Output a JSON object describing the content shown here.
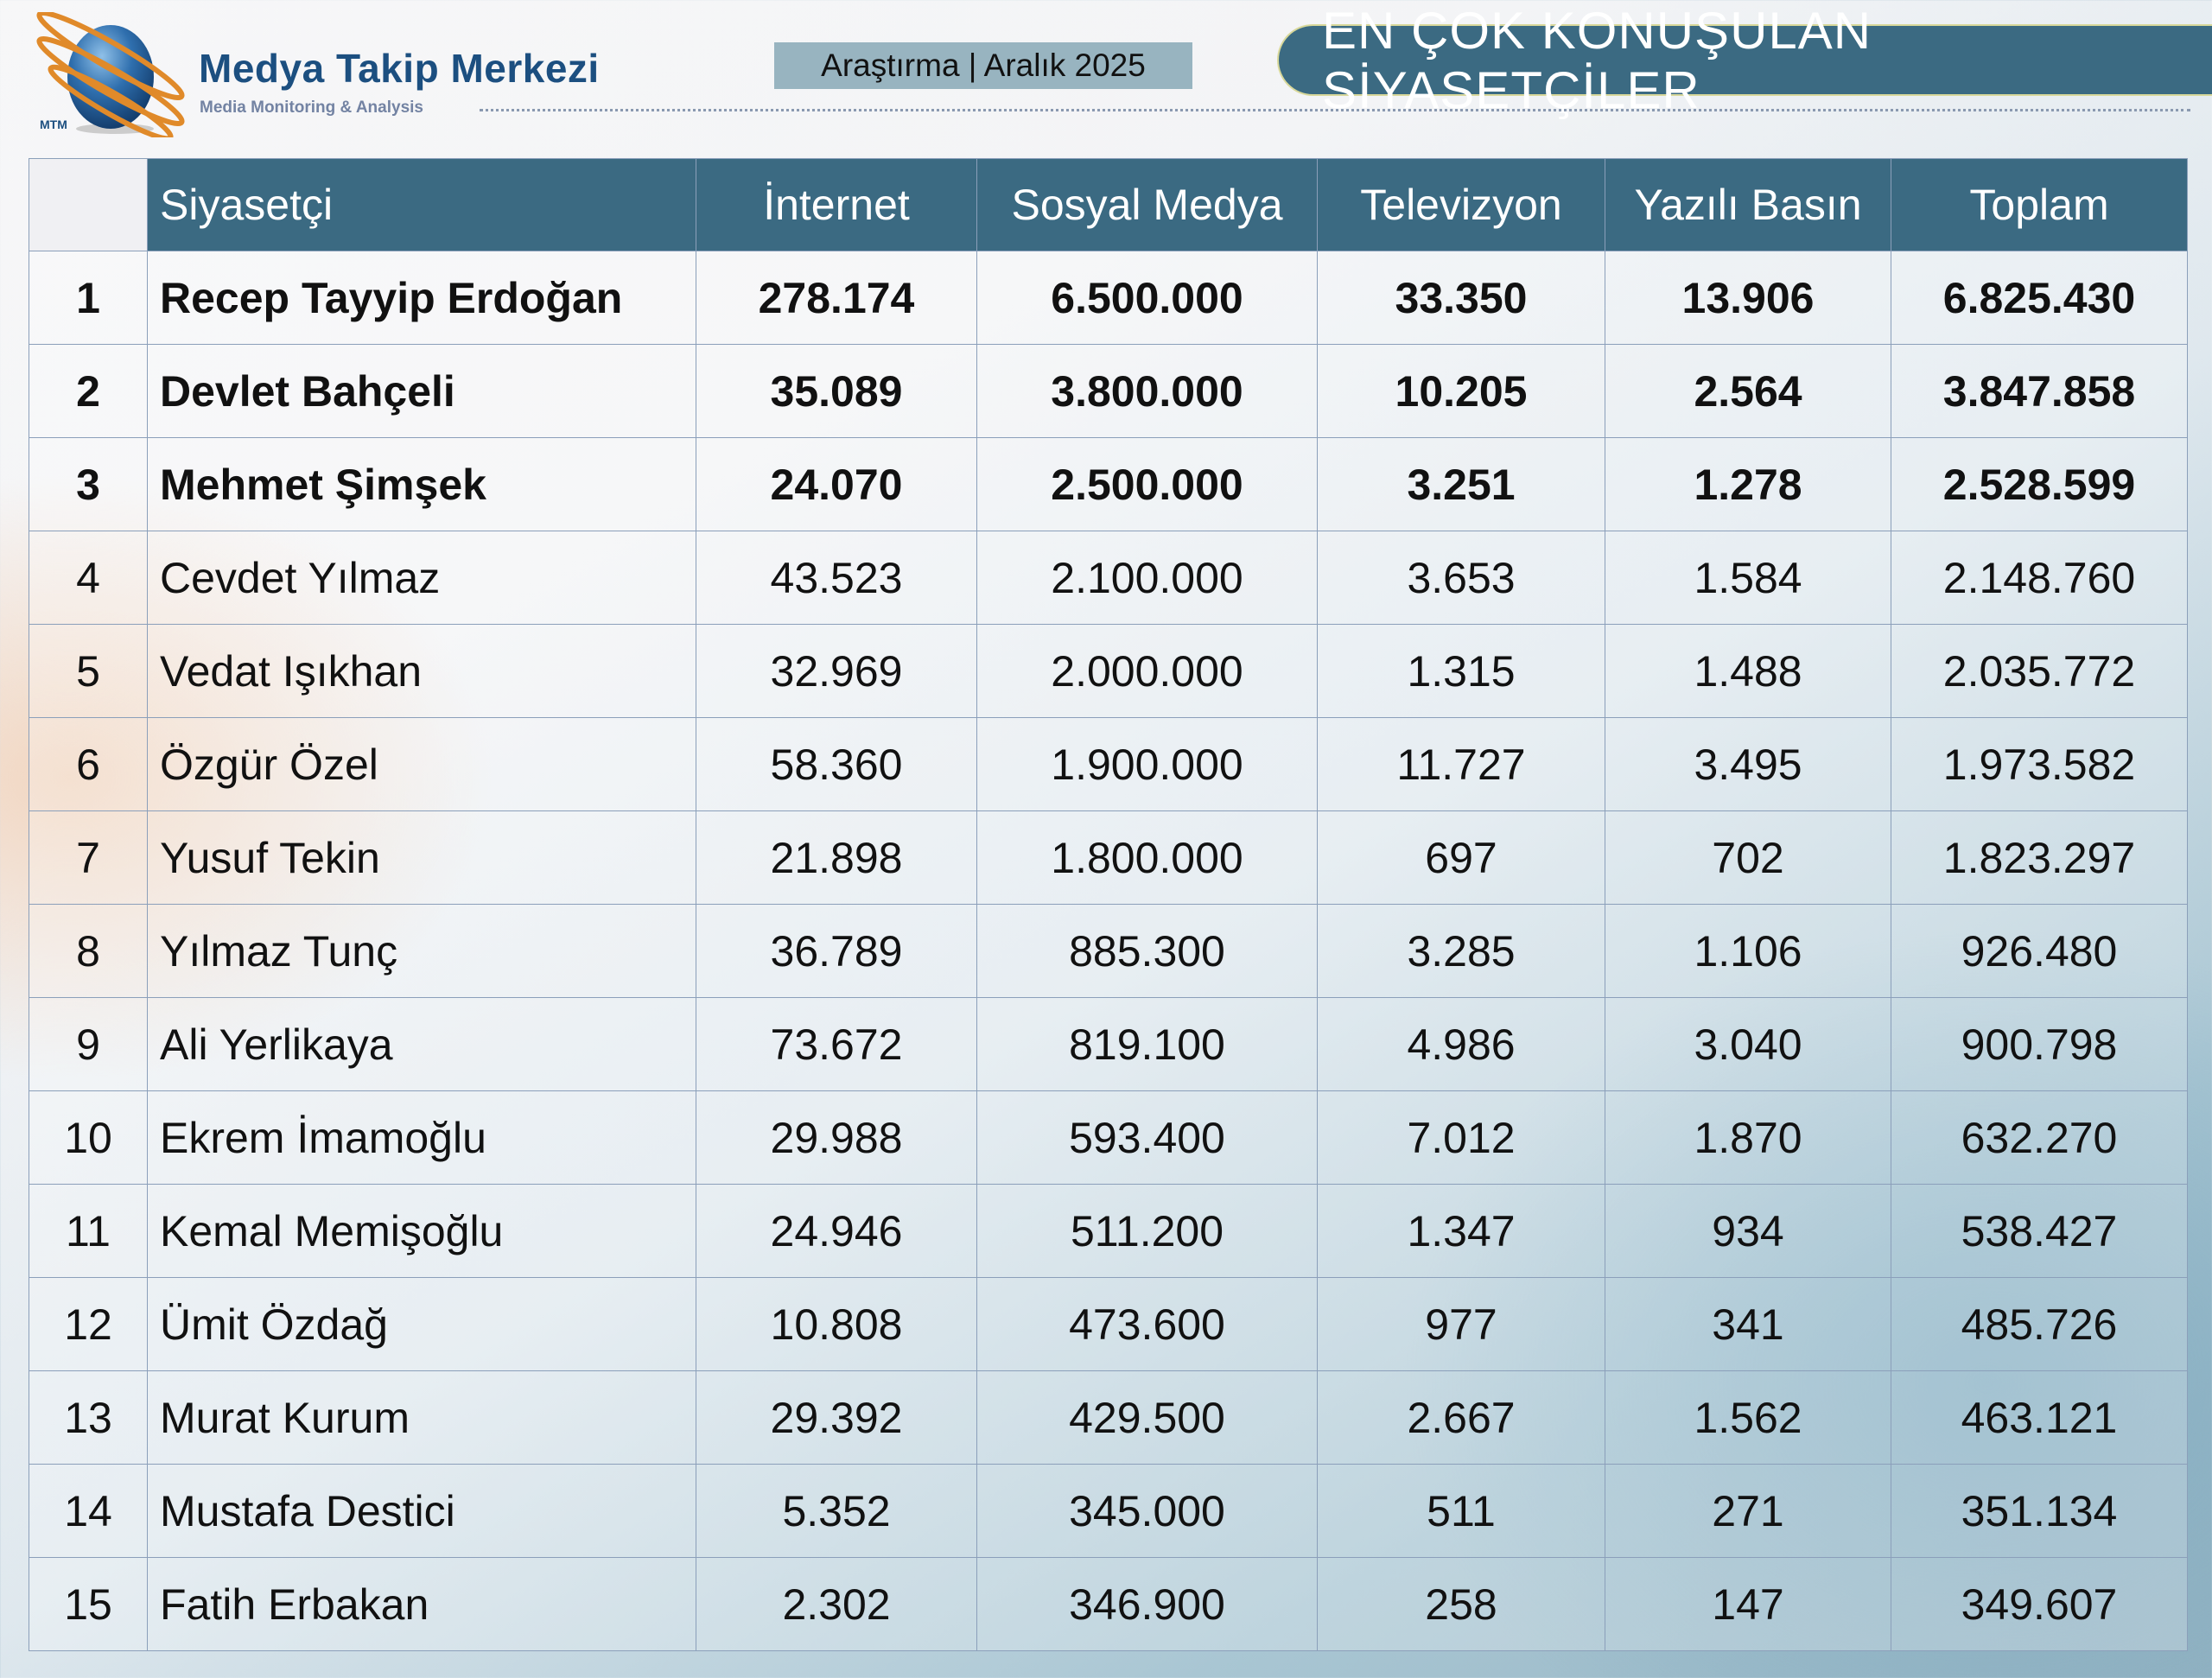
{
  "header": {
    "brand_name": "Medya Takip Merkezi",
    "brand_subtitle": "Media Monitoring & Analysis",
    "logo_text": "MTM",
    "badge": "Araştırma | Aralık 2025",
    "title": "EN ÇOK KONUŞULAN SİYASETÇİLER"
  },
  "colors": {
    "header_bg": "#3b6a82",
    "brand": "#1c4f80",
    "badge_bg": "#98b4c0",
    "logo_ring": "#e08a2a"
  },
  "table": {
    "columns": [
      "",
      "Siyasetçi",
      "İnternet",
      "Sosyal Medya",
      "Televizyon",
      "Yazılı Basın",
      "Toplam"
    ],
    "rows": [
      {
        "rank": "1",
        "name": "Recep Tayyip Erdoğan",
        "internet": "278.174",
        "social": "6.500.000",
        "tv": "33.350",
        "print": "13.906",
        "total": "6.825.430"
      },
      {
        "rank": "2",
        "name": "Devlet Bahçeli",
        "internet": "35.089",
        "social": "3.800.000",
        "tv": "10.205",
        "print": "2.564",
        "total": "3.847.858"
      },
      {
        "rank": "3",
        "name": "Mehmet Şimşek",
        "internet": "24.070",
        "social": "2.500.000",
        "tv": "3.251",
        "print": "1.278",
        "total": "2.528.599"
      },
      {
        "rank": "4",
        "name": "Cevdet Yılmaz",
        "internet": "43.523",
        "social": "2.100.000",
        "tv": "3.653",
        "print": "1.584",
        "total": "2.148.760"
      },
      {
        "rank": "5",
        "name": "Vedat Işıkhan",
        "internet": "32.969",
        "social": "2.000.000",
        "tv": "1.315",
        "print": "1.488",
        "total": "2.035.772"
      },
      {
        "rank": "6",
        "name": "Özgür Özel",
        "internet": "58.360",
        "social": "1.900.000",
        "tv": "11.727",
        "print": "3.495",
        "total": "1.973.582"
      },
      {
        "rank": "7",
        "name": "Yusuf Tekin",
        "internet": "21.898",
        "social": "1.800.000",
        "tv": "697",
        "print": "702",
        "total": "1.823.297"
      },
      {
        "rank": "8",
        "name": "Yılmaz Tunç",
        "internet": "36.789",
        "social": "885.300",
        "tv": "3.285",
        "print": "1.106",
        "total": "926.480"
      },
      {
        "rank": "9",
        "name": "Ali Yerlikaya",
        "internet": "73.672",
        "social": "819.100",
        "tv": "4.986",
        "print": "3.040",
        "total": "900.798"
      },
      {
        "rank": "10",
        "name": "Ekrem İmamoğlu",
        "internet": "29.988",
        "social": "593.400",
        "tv": "7.012",
        "print": "1.870",
        "total": "632.270"
      },
      {
        "rank": "11",
        "name": "Kemal Memişoğlu",
        "internet": "24.946",
        "social": "511.200",
        "tv": "1.347",
        "print": "934",
        "total": "538.427"
      },
      {
        "rank": "12",
        "name": "Ümit Özdağ",
        "internet": "10.808",
        "social": "473.600",
        "tv": "977",
        "print": "341",
        "total": "485.726"
      },
      {
        "rank": "13",
        "name": "Murat Kurum",
        "internet": "29.392",
        "social": "429.500",
        "tv": "2.667",
        "print": "1.562",
        "total": "463.121"
      },
      {
        "rank": "14",
        "name": "Mustafa Destici",
        "internet": "5.352",
        "social": "345.000",
        "tv": "511",
        "print": "271",
        "total": "351.134"
      },
      {
        "rank": "15",
        "name": "Fatih Erbakan",
        "internet": "2.302",
        "social": "346.900",
        "tv": "258",
        "print": "147",
        "total": "349.607"
      }
    ]
  }
}
